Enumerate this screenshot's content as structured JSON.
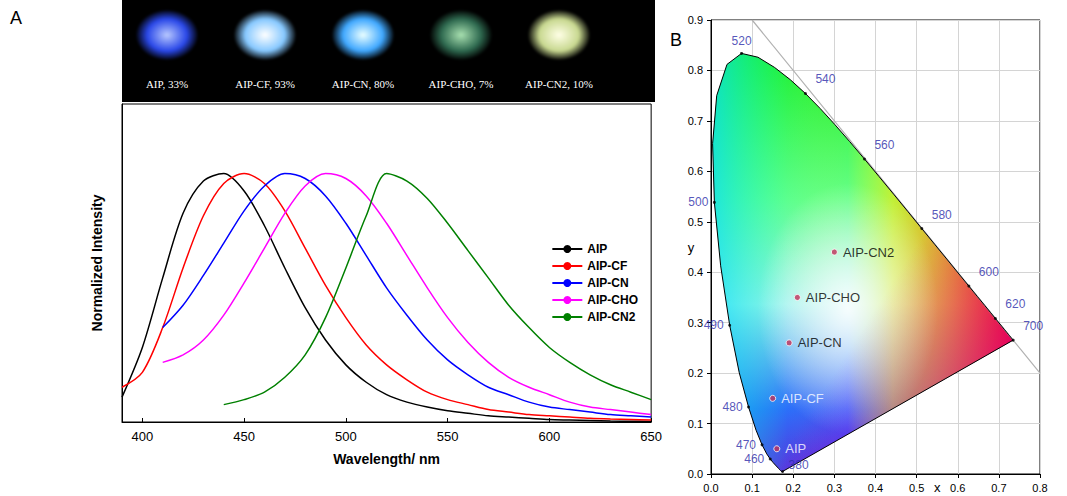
{
  "chart_data": [
    {
      "panel_label": "A",
      "type": "line",
      "photo_labels": [
        "AIP, 33%",
        "AIP-CF, 93%",
        "AIP-CN, 80%",
        "AIP-CHO, 7%",
        "AIP-CN2, 10%"
      ],
      "xlabel": "Wavelength/ nm",
      "ylabel": "Normalized Intensity",
      "xlim": [
        390,
        650
      ],
      "xticks": [
        400,
        450,
        500,
        550,
        600,
        650
      ],
      "ylim": [
        0,
        1.28
      ],
      "tick_labels": "x",
      "grid": false,
      "legend": "right",
      "series": [
        {
          "name": "AIP",
          "color": "#000000",
          "x": [
            390,
            400,
            410,
            420,
            430,
            440,
            450,
            460,
            470,
            480,
            490,
            500,
            510,
            520,
            530,
            540,
            550,
            560,
            570,
            580,
            590,
            600,
            610,
            620,
            630,
            640,
            650
          ],
          "values": [
            0.1,
            0.3,
            0.58,
            0.84,
            0.97,
            1.0,
            0.93,
            0.79,
            0.62,
            0.46,
            0.33,
            0.23,
            0.16,
            0.11,
            0.08,
            0.06,
            0.045,
            0.035,
            0.025,
            0.02,
            0.015,
            0.01,
            0.008,
            0.006,
            0.004,
            0.003,
            0.002
          ]
        },
        {
          "name": "AIP-CF",
          "color": "#ff0000",
          "x": [
            390,
            400,
            410,
            420,
            430,
            440,
            450,
            460,
            470,
            480,
            490,
            500,
            510,
            520,
            530,
            540,
            550,
            560,
            570,
            580,
            590,
            600,
            610,
            620,
            630,
            640,
            650
          ],
          "values": [
            0.14,
            0.2,
            0.38,
            0.62,
            0.83,
            0.96,
            1.0,
            0.96,
            0.85,
            0.7,
            0.55,
            0.42,
            0.31,
            0.23,
            0.17,
            0.12,
            0.09,
            0.07,
            0.05,
            0.04,
            0.03,
            0.025,
            0.02,
            0.015,
            0.012,
            0.01,
            0.008
          ]
        },
        {
          "name": "AIP-CN",
          "color": "#0000ff",
          "x": [
            410,
            420,
            430,
            440,
            450,
            460,
            470,
            480,
            490,
            500,
            510,
            520,
            530,
            540,
            550,
            560,
            570,
            580,
            590,
            600,
            610,
            620,
            630,
            640,
            650
          ],
          "values": [
            0.38,
            0.47,
            0.59,
            0.72,
            0.85,
            0.95,
            1.0,
            0.98,
            0.91,
            0.8,
            0.67,
            0.54,
            0.43,
            0.33,
            0.25,
            0.19,
            0.14,
            0.11,
            0.08,
            0.06,
            0.05,
            0.04,
            0.03,
            0.025,
            0.02
          ]
        },
        {
          "name": "AIP-CHO",
          "color": "#ff00ff",
          "x": [
            410,
            420,
            430,
            440,
            450,
            460,
            470,
            480,
            490,
            500,
            510,
            520,
            530,
            540,
            550,
            560,
            570,
            580,
            590,
            600,
            610,
            620,
            630,
            640,
            650
          ],
          "values": [
            0.24,
            0.27,
            0.33,
            0.43,
            0.56,
            0.7,
            0.84,
            0.95,
            1.0,
            0.98,
            0.91,
            0.8,
            0.67,
            0.54,
            0.42,
            0.32,
            0.24,
            0.18,
            0.14,
            0.11,
            0.08,
            0.06,
            0.05,
            0.04,
            0.03
          ]
        },
        {
          "name": "AIP-CN2",
          "color": "#008000",
          "x": [
            440,
            450,
            460,
            470,
            480,
            490,
            500,
            510,
            520,
            530,
            540,
            550,
            560,
            570,
            580,
            590,
            600,
            610,
            620,
            630,
            640,
            650
          ],
          "values": [
            0.07,
            0.09,
            0.12,
            0.18,
            0.27,
            0.42,
            0.62,
            0.83,
            1.0,
            0.97,
            0.9,
            0.8,
            0.69,
            0.58,
            0.47,
            0.38,
            0.3,
            0.24,
            0.19,
            0.15,
            0.12,
            0.09
          ]
        }
      ]
    },
    {
      "panel_label": "B",
      "type": "scatter",
      "xlabel": "x",
      "ylabel": "y",
      "xlim": [
        0,
        0.8
      ],
      "xticks": [
        {
          "value": 0,
          "label": "0.0"
        },
        0.1,
        0.2,
        0.3,
        0.4,
        0.5,
        0.6,
        0.7,
        0.8
      ],
      "ylim": [
        0,
        0.9
      ],
      "yticks": [
        {
          "value": 0,
          "label": "0.0"
        },
        0.1,
        0.2,
        0.3,
        0.4,
        0.5,
        0.6,
        0.7,
        0.8,
        0.9
      ],
      "grid": true,
      "points": {
        "labels": [
          "AIP",
          "AIP-CF",
          "AIP-CN",
          "AIP-CHO",
          "AIP-CN2"
        ],
        "x": [
          0.16,
          0.15,
          0.19,
          0.21,
          0.3
        ],
        "y": [
          0.05,
          0.15,
          0.26,
          0.35,
          0.44
        ],
        "color": "#c0305a"
      },
      "spectral_locus": {
        "color": "#000000",
        "x": [
          0.1741,
          0.174,
          0.1738,
          0.1736,
          0.1733,
          0.173,
          0.1726,
          0.1721,
          0.1714,
          0.1703,
          0.1689,
          0.1669,
          0.1644,
          0.1611,
          0.1566,
          0.151,
          0.144,
          0.1355,
          0.1241,
          0.1096,
          0.0913,
          0.0687,
          0.0454,
          0.0235,
          0.0082,
          0.0039,
          0.0139,
          0.0389,
          0.0743,
          0.1142,
          0.1547,
          0.1929,
          0.2296,
          0.2658,
          0.3016,
          0.3373,
          0.3731,
          0.4087,
          0.4441,
          0.4788,
          0.5125,
          0.5448,
          0.5752,
          0.6029,
          0.627,
          0.6482,
          0.6658,
          0.6801,
          0.6915,
          0.7006,
          0.7079,
          0.714,
          0.719,
          0.723,
          0.726,
          0.73,
          0.732,
          0.7334,
          0.7347
        ],
        "y": [
          0.005,
          0.005,
          0.0049,
          0.0049,
          0.0048,
          0.0048,
          0.0048,
          0.0048,
          0.0051,
          0.0058,
          0.0069,
          0.0086,
          0.0109,
          0.0138,
          0.0177,
          0.0227,
          0.0297,
          0.0399,
          0.0578,
          0.0868,
          0.1327,
          0.2007,
          0.295,
          0.4127,
          0.5384,
          0.6548,
          0.7502,
          0.812,
          0.8338,
          0.8262,
          0.8059,
          0.7816,
          0.7543,
          0.7243,
          0.6923,
          0.6589,
          0.6245,
          0.5896,
          0.5547,
          0.5202,
          0.4866,
          0.4544,
          0.4242,
          0.3965,
          0.3725,
          0.3514,
          0.334,
          0.3197,
          0.3083,
          0.2993,
          0.292,
          0.2859,
          0.2809,
          0.277,
          0.274,
          0.27,
          0.268,
          0.2666,
          0.2653
        ]
      },
      "wavelength_marks": {
        "color": "#2a2aa8",
        "wavelengths": [
          380,
          460,
          470,
          480,
          490,
          500,
          520,
          540,
          560,
          580,
          600,
          620,
          700
        ],
        "x": [
          0.1741,
          0.144,
          0.1241,
          0.0913,
          0.0454,
          0.0082,
          0.0743,
          0.2296,
          0.3731,
          0.5125,
          0.627,
          0.6915,
          0.7347
        ],
        "y": [
          0.005,
          0.0297,
          0.0578,
          0.1327,
          0.295,
          0.5384,
          0.8338,
          0.7543,
          0.6245,
          0.4866,
          0.3725,
          0.3083,
          0.2653
        ]
      },
      "boundary_line": {
        "x": [
          0.1,
          0.8
        ],
        "y": [
          0.9,
          0.2
        ],
        "color": "#b0b0b0"
      }
    }
  ]
}
